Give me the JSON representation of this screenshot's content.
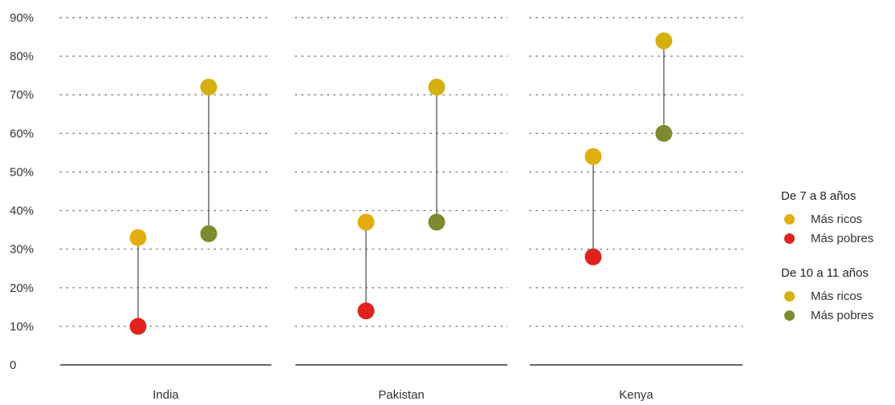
{
  "chart_data": {
    "type": "scatter",
    "subtype": "dumbbell",
    "yticks": [
      "0",
      "10%",
      "20%",
      "30%",
      "40%",
      "50%",
      "60%",
      "70%",
      "80%",
      "90%"
    ],
    "ylim": [
      0,
      90
    ],
    "grid": true,
    "categories": [
      "India",
      "Pakistan",
      "Kenya"
    ],
    "groups": [
      {
        "name": "De 7 a 8 años",
        "series": [
          {
            "name": "Más ricos",
            "color": "#E3AD0F",
            "values": [
              33,
              37,
              54
            ]
          },
          {
            "name": "Más pobres",
            "color": "#E0221F",
            "values": [
              10,
              14,
              28
            ]
          }
        ]
      },
      {
        "name": "De 10 a 11 años",
        "series": [
          {
            "name": "Más ricos",
            "color": "#D4B010",
            "values": [
              72,
              72,
              84
            ]
          },
          {
            "name": "Más pobres",
            "color": "#7F8A2E",
            "values": [
              34,
              37,
              60
            ]
          }
        ]
      }
    ],
    "legend_position": "right"
  }
}
